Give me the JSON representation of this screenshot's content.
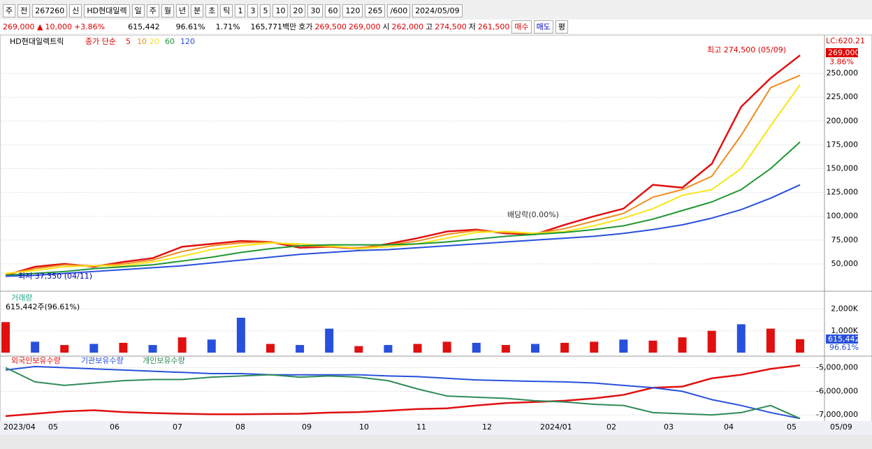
{
  "toolbar": {
    "items": [
      "주",
      "전",
      "267260",
      "신",
      "HD현대일렉",
      "일",
      "주",
      "월",
      "년",
      "분",
      "초",
      "틱",
      "1",
      "3",
      "5",
      "10",
      "20",
      "30",
      "60",
      "120",
      "265",
      "/600",
      "2024/05/09"
    ]
  },
  "info": {
    "price": "269,000 ▲",
    "change": "10,000",
    "rate": "+3.86%",
    "volume": "615,442",
    "volume_rate": "96.61%",
    "turnover": "1.71%",
    "amount": "165,771백만",
    "ask_label": "호가",
    "ask": "269,500",
    "bid": "269,000",
    "open_label": "시",
    "open": "262,000",
    "high_label": "고",
    "high": "274,500",
    "low_label": "저",
    "low": "261,500",
    "buy": "매수",
    "sell": "매도",
    "eval": "평"
  },
  "x_axis_labels": [
    "2023/04",
    "05",
    "06",
    "07",
    "08",
    "09",
    "10",
    "11",
    "12",
    "2024/01",
    "02",
    "03",
    "04",
    "05",
    "05/09"
  ],
  "chart_data": [
    {
      "type": "line",
      "title": "HD현대일렉트릭",
      "indicator": "종가 단순",
      "series": [
        {
          "name": "5",
          "color": "#e01010",
          "values": [
            38000,
            47000,
            50000,
            47000,
            52000,
            56000,
            68000,
            71000,
            74000,
            73000,
            67000,
            68000,
            66000,
            71000,
            77000,
            84000,
            86000,
            82000,
            81000,
            91000,
            100000,
            108000,
            133000,
            130000,
            155000,
            215000,
            245000,
            269000
          ]
        },
        {
          "name": "10",
          "color": "#f08c1e",
          "values": [
            39000,
            45000,
            49000,
            48000,
            50000,
            54000,
            63000,
            69000,
            72000,
            73000,
            69000,
            68000,
            67000,
            70000,
            74000,
            81000,
            85000,
            83000,
            82000,
            87000,
            95000,
            103000,
            120000,
            128000,
            142000,
            185000,
            235000,
            248000
          ]
        },
        {
          "name": "20",
          "color": "#f5e616",
          "values": [
            40000,
            43000,
            47000,
            48000,
            48000,
            52000,
            58000,
            65000,
            69000,
            72000,
            71000,
            69000,
            66000,
            68000,
            71000,
            77000,
            83000,
            84000,
            82000,
            84000,
            90000,
            98000,
            108000,
            122000,
            128000,
            150000,
            195000,
            238000
          ]
        },
        {
          "name": "60",
          "color": "#1e9632",
          "values": [
            38000,
            40000,
            42000,
            45000,
            47000,
            49000,
            53000,
            57000,
            62000,
            66000,
            69000,
            70000,
            70000,
            70000,
            71000,
            73000,
            76000,
            79000,
            81000,
            83000,
            86000,
            90000,
            97000,
            106000,
            115000,
            128000,
            150000,
            178000
          ]
        },
        {
          "name": "120",
          "color": "#2850dc",
          "values": [
            37000,
            38000,
            40000,
            42000,
            44000,
            46000,
            48000,
            51000,
            54000,
            57000,
            60000,
            62000,
            64000,
            65000,
            67000,
            69000,
            71000,
            73000,
            75000,
            77000,
            79000,
            82000,
            86000,
            91000,
            98000,
            107000,
            119000,
            133000
          ]
        }
      ],
      "ylim": [
        25000,
        286000
      ],
      "yticks": [
        {
          "value": 50000,
          "label": "50,000"
        },
        {
          "value": 75000,
          "label": "75,000"
        },
        {
          "value": 100000,
          "label": "100,000"
        },
        {
          "value": 125000,
          "label": "125,000"
        },
        {
          "value": 150000,
          "label": "150,000"
        },
        {
          "value": 175000,
          "label": "175,000"
        },
        {
          "value": 200000,
          "label": "200,000"
        },
        {
          "value": 225000,
          "label": "225,000"
        },
        {
          "value": 250000,
          "label": "250,000"
        }
      ],
      "annotations": [
        "최고 274,500 (05/09)",
        "최저 37,350 (04/11)",
        "배당락(0.00%)"
      ],
      "right_labels": [
        "LC:620.21",
        "269,000",
        "3.86%"
      ]
    },
    {
      "type": "bar",
      "title": "거래량",
      "subtitle": "615,442주(96.61%)",
      "values": [
        1400000,
        500000,
        350000,
        400000,
        450000,
        350000,
        700000,
        600000,
        1600000,
        400000,
        350000,
        1100000,
        300000,
        350000,
        400000,
        500000,
        450000,
        350000,
        400000,
        450000,
        500000,
        600000,
        550000,
        700000,
        1000000,
        1300000,
        1100000,
        615442
      ],
      "colors": [
        "#e01010",
        "#2850dc",
        "#e01010",
        "#2850dc",
        "#e01010",
        "#2850dc",
        "#e01010",
        "#2850dc",
        "#2850dc",
        "#e01010",
        "#2850dc",
        "#2850dc",
        "#e01010",
        "#2850dc",
        "#e01010",
        "#e01010",
        "#2850dc",
        "#e01010",
        "#2850dc",
        "#e01010",
        "#e01010",
        "#2850dc",
        "#e01010",
        "#e01010",
        "#e01010",
        "#2850dc",
        "#e01010",
        "#e01010"
      ],
      "ylim": [
        0,
        2560000
      ],
      "yticks": [
        {
          "value": 1000000,
          "label": "1,000K"
        },
        {
          "value": 2000000,
          "label": "2,000K"
        }
      ],
      "right_labels": [
        "615,442",
        "96.61%"
      ]
    },
    {
      "type": "line",
      "series": [
        {
          "name": "외국인보유수량",
          "color": "#e01010",
          "values": [
            -7050000,
            -6950000,
            -6850000,
            -6800000,
            -6880000,
            -6920000,
            -6950000,
            -6970000,
            -6970000,
            -6960000,
            -6950000,
            -6900000,
            -6880000,
            -6820000,
            -6750000,
            -6720000,
            -6600000,
            -6500000,
            -6450000,
            -6400000,
            -6300000,
            -6150000,
            -5850000,
            -5800000,
            -5450000,
            -5300000,
            -5050000,
            -4900000
          ]
        },
        {
          "name": "기관보유수량",
          "color": "#2850dc",
          "values": [
            -5100000,
            -4950000,
            -5000000,
            -5050000,
            -5100000,
            -5150000,
            -5200000,
            -5250000,
            -5250000,
            -5300000,
            -5300000,
            -5300000,
            -5300000,
            -5350000,
            -5380000,
            -5450000,
            -5520000,
            -5550000,
            -5580000,
            -5600000,
            -5650000,
            -5750000,
            -5850000,
            -6000000,
            -6350000,
            -6600000,
            -6900000,
            -7150000
          ]
        },
        {
          "name": "개인보유수량",
          "color": "#2e8b57",
          "values": [
            -5000000,
            -5600000,
            -5750000,
            -5650000,
            -5550000,
            -5500000,
            -5500000,
            -5400000,
            -5350000,
            -5300000,
            -5400000,
            -5350000,
            -5400000,
            -5550000,
            -5900000,
            -6200000,
            -6250000,
            -6300000,
            -6400000,
            -6450000,
            -6550000,
            -6600000,
            -6900000,
            -6950000,
            -7000000,
            -6900000,
            -6600000,
            -7150000
          ]
        }
      ],
      "ylim": [
        -7230000,
        -4600000
      ],
      "yticks": [
        {
          "value": -7000000,
          "label": "-7,000,000"
        },
        {
          "value": -6000000,
          "label": "-6,000,000"
        },
        {
          "value": -5000000,
          "label": "-5,000,000"
        }
      ]
    }
  ]
}
